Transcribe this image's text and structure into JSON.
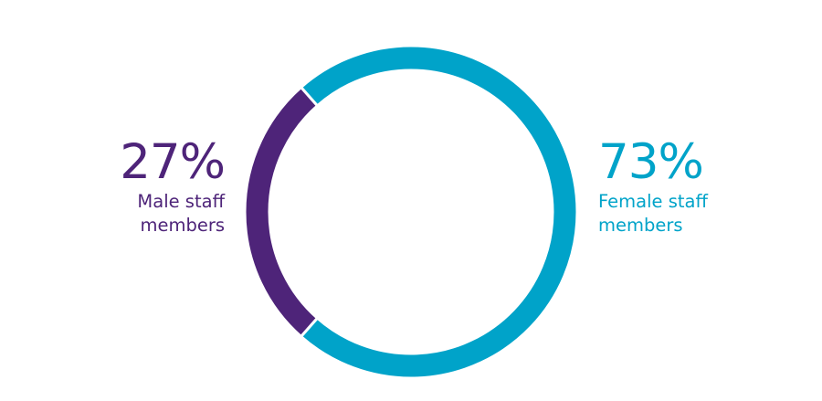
{
  "chart_data": {
    "type": "pie",
    "donut": true,
    "start_category": "Male staff members",
    "slices": [
      {
        "label": "Male staff members",
        "value": 27,
        "display_value": "27%",
        "desc_lines": [
          "Male staff",
          "members"
        ],
        "color": "#4e2479"
      },
      {
        "label": "Female staff members",
        "value": 73,
        "display_value": "73%",
        "desc_lines": [
          "Female staff",
          "members"
        ],
        "color": "#00a3c9"
      }
    ]
  }
}
